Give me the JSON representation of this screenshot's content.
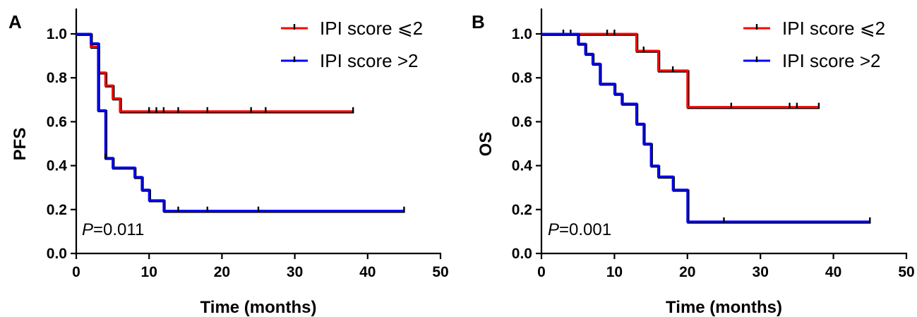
{
  "chart_data": [
    {
      "type": "line",
      "subtype": "kaplan-meier",
      "panel_label": "A",
      "xlabel": "Time (months)",
      "ylabel": "PFS",
      "xlim": [
        0,
        50
      ],
      "ylim": [
        0,
        1.0
      ],
      "xticks": [
        0,
        10,
        20,
        30,
        40,
        50
      ],
      "yticks": [
        0.0,
        0.2,
        0.4,
        0.6,
        0.8,
        1.0
      ],
      "xtick_labels": [
        "0",
        "10",
        "20",
        "30",
        "40",
        "50"
      ],
      "ytick_labels": [
        "0.0",
        "0.2",
        "0.4",
        "0.6",
        "0.8",
        "1.0"
      ],
      "legend_position": "top-right",
      "annotation": {
        "p_symbol": "P",
        "p_rest": "=0.011"
      },
      "series": [
        {
          "name": "IPI score ⩽2",
          "color": "#ff0000",
          "steps": [
            [
              0,
              1.0
            ],
            [
              2,
              0.941
            ],
            [
              3,
              0.824
            ],
            [
              4,
              0.765
            ],
            [
              5,
              0.706
            ],
            [
              6,
              0.647
            ],
            [
              38,
              0.647
            ]
          ],
          "censored": [
            [
              10,
              0.647
            ],
            [
              11,
              0.647
            ],
            [
              12,
              0.647
            ],
            [
              14,
              0.647
            ],
            [
              18,
              0.647
            ],
            [
              24,
              0.647
            ],
            [
              26,
              0.647
            ],
            [
              38,
              0.647
            ]
          ]
        },
        {
          "name": "IPI score >2",
          "color": "#0000ff",
          "steps": [
            [
              0,
              1.0
            ],
            [
              2,
              0.957
            ],
            [
              3,
              0.652
            ],
            [
              4,
              0.435
            ],
            [
              5,
              0.391
            ],
            [
              8,
              0.348
            ],
            [
              9,
              0.29
            ],
            [
              10,
              0.242
            ],
            [
              12,
              0.194
            ],
            [
              45,
              0.194
            ]
          ],
          "censored": [
            [
              4,
              0.435
            ],
            [
              14,
              0.194
            ],
            [
              18,
              0.194
            ],
            [
              25,
              0.194
            ],
            [
              45,
              0.194
            ]
          ]
        }
      ]
    },
    {
      "type": "line",
      "subtype": "kaplan-meier",
      "panel_label": "B",
      "xlabel": "Time (months)",
      "ylabel": "OS",
      "xlim": [
        0,
        50
      ],
      "ylim": [
        0,
        1.0
      ],
      "xticks": [
        0,
        10,
        20,
        30,
        40,
        50
      ],
      "yticks": [
        0.0,
        0.2,
        0.4,
        0.6,
        0.8,
        1.0
      ],
      "xtick_labels": [
        "0",
        "10",
        "20",
        "30",
        "40",
        "50"
      ],
      "ytick_labels": [
        "0.0",
        "0.2",
        "0.4",
        "0.6",
        "0.8",
        "1.0"
      ],
      "legend_position": "top-right",
      "annotation": {
        "p_symbol": "P",
        "p_rest": "=0.001"
      },
      "series": [
        {
          "name": "IPI score ⩽2",
          "color": "#ff0000",
          "steps": [
            [
              0,
              1.0
            ],
            [
              13,
              0.923
            ],
            [
              16,
              0.833
            ],
            [
              20,
              0.667
            ],
            [
              38,
              0.667
            ]
          ],
          "censored": [
            [
              3,
              1.0
            ],
            [
              4,
              1.0
            ],
            [
              9,
              1.0
            ],
            [
              10,
              1.0
            ],
            [
              14,
              0.923
            ],
            [
              18,
              0.833
            ],
            [
              26,
              0.667
            ],
            [
              34,
              0.667
            ],
            [
              35,
              0.667
            ],
            [
              38,
              0.667
            ]
          ]
        },
        {
          "name": "IPI score >2",
          "color": "#0000ff",
          "steps": [
            [
              0,
              1.0
            ],
            [
              5,
              0.955
            ],
            [
              6,
              0.909
            ],
            [
              7,
              0.864
            ],
            [
              8,
              0.773
            ],
            [
              10,
              0.727
            ],
            [
              11,
              0.682
            ],
            [
              13,
              0.591
            ],
            [
              14,
              0.5
            ],
            [
              15,
              0.4
            ],
            [
              16,
              0.35
            ],
            [
              18,
              0.29
            ],
            [
              20,
              0.145
            ],
            [
              45,
              0.145
            ]
          ],
          "censored": [
            [
              25,
              0.145
            ],
            [
              45,
              0.145
            ]
          ]
        }
      ]
    }
  ]
}
